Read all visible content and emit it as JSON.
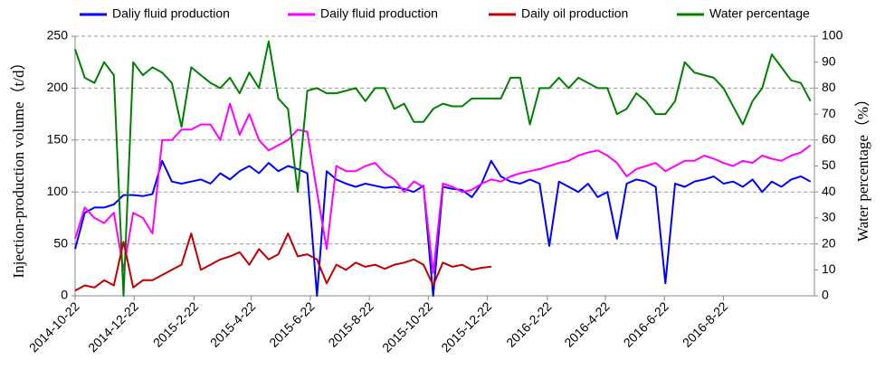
{
  "chart_data": {
    "type": "line",
    "x": [
      "2014-10-22",
      "2014-11-01",
      "2014-11-11",
      "2014-11-21",
      "2014-12-01",
      "2014-12-11",
      "2014-12-21",
      "2014-12-31",
      "2015-01-10",
      "2015-01-20",
      "2015-01-30",
      "2015-02-09",
      "2015-02-19",
      "2015-03-01",
      "2015-03-11",
      "2015-03-21",
      "2015-03-31",
      "2015-04-10",
      "2015-04-20",
      "2015-04-30",
      "2015-05-10",
      "2015-05-20",
      "2015-05-30",
      "2015-06-09",
      "2015-06-19",
      "2015-06-29",
      "2015-07-09",
      "2015-07-19",
      "2015-07-29",
      "2015-08-08",
      "2015-08-18",
      "2015-08-28",
      "2015-09-07",
      "2015-09-17",
      "2015-09-27",
      "2015-10-07",
      "2015-10-17",
      "2015-10-27",
      "2015-11-06",
      "2015-11-16",
      "2015-11-26",
      "2015-12-06",
      "2015-12-16",
      "2015-12-26",
      "2016-01-05",
      "2016-01-15",
      "2016-01-25",
      "2016-02-04",
      "2016-02-14",
      "2016-02-24",
      "2016-03-05",
      "2016-03-15",
      "2016-03-25",
      "2016-04-04",
      "2016-04-14",
      "2016-04-24",
      "2016-05-04",
      "2016-05-14",
      "2016-05-24",
      "2016-06-03",
      "2016-06-13",
      "2016-06-23",
      "2016-07-03",
      "2016-07-13",
      "2016-07-23",
      "2016-08-02",
      "2016-08-12",
      "2016-08-22",
      "2016-09-01",
      "2016-09-11",
      "2016-09-21",
      "2016-10-01",
      "2016-10-11",
      "2016-10-21",
      "2016-10-31",
      "2016-11-10",
      "2016-11-20"
    ],
    "series": [
      {
        "name": "Daliy fluid production",
        "color": "#0000ff",
        "values": [
          45,
          80,
          85,
          85,
          88,
          97,
          97,
          96,
          98,
          130,
          110,
          108,
          110,
          112,
          108,
          118,
          112,
          120,
          125,
          118,
          128,
          120,
          125,
          122,
          118,
          0,
          120,
          112,
          108,
          105,
          108,
          106,
          104,
          105,
          103,
          100,
          106,
          0,
          105,
          103,
          102,
          95,
          108,
          130,
          115,
          110,
          108,
          112,
          108,
          48,
          110,
          105,
          100,
          108,
          95,
          100,
          55,
          108,
          112,
          110,
          105,
          12,
          108,
          105,
          110,
          112,
          115,
          108,
          110,
          105,
          112,
          100,
          110,
          105,
          112,
          115,
          110
        ]
      },
      {
        "name": "Daily fluid production",
        "color": "#ff00ff",
        "values": [
          55,
          85,
          75,
          70,
          80,
          25,
          80,
          75,
          60,
          150,
          150,
          160,
          160,
          165,
          165,
          150,
          185,
          155,
          175,
          150,
          140,
          145,
          150,
          160,
          158,
          100,
          45,
          125,
          120,
          120,
          125,
          128,
          118,
          112,
          100,
          110,
          105,
          22,
          108,
          105,
          100,
          102,
          108,
          112,
          110,
          115,
          118,
          120,
          122,
          125,
          128,
          130,
          135,
          138,
          140,
          135,
          128,
          115,
          122,
          125,
          128,
          120,
          125,
          130,
          130,
          135,
          132,
          128,
          125,
          130,
          128,
          135,
          132,
          130,
          135,
          138,
          145
        ]
      },
      {
        "name": "Daily oil production",
        "color": "#c00000",
        "values": [
          5,
          10,
          8,
          15,
          10,
          52,
          8,
          15,
          15,
          20,
          25,
          30,
          60,
          25,
          30,
          35,
          38,
          42,
          30,
          45,
          35,
          40,
          60,
          38,
          40,
          35,
          12,
          30,
          25,
          32,
          28,
          30,
          26,
          30,
          32,
          35,
          30,
          10,
          32,
          28,
          30,
          25,
          27,
          28,
          null,
          null,
          null,
          null,
          null,
          null,
          null,
          null,
          null,
          null,
          null,
          null,
          null,
          null,
          null,
          null,
          null,
          null,
          null,
          null,
          null,
          null,
          null,
          null,
          null,
          null,
          null,
          null,
          null,
          null,
          null,
          null,
          null
        ]
      },
      {
        "name": "Water percentage",
        "color": "#008000",
        "axis": "y2",
        "values": [
          95,
          84,
          82,
          90,
          85,
          0,
          90,
          85,
          88,
          86,
          82,
          65,
          88,
          85,
          82,
          80,
          84,
          78,
          86,
          80,
          98,
          76,
          72,
          40,
          79,
          80,
          78,
          78,
          79,
          80,
          75,
          80,
          80,
          72,
          74,
          67,
          67,
          72,
          74,
          73,
          73,
          76,
          76,
          76,
          76,
          84,
          84,
          66,
          80,
          80,
          84,
          80,
          84,
          82,
          80,
          80,
          70,
          72,
          78,
          75,
          70,
          70,
          75,
          90,
          86,
          85,
          84,
          80,
          73,
          66,
          75,
          80,
          93,
          88,
          83,
          82,
          75
        ]
      }
    ],
    "xlim": [
      "2014-10-22",
      "2016-11-24"
    ],
    "xticks": [
      {
        "value": "2014-10-22",
        "label": "2014-10-22"
      },
      {
        "value": "2014-12-22",
        "label": "2014-12-22"
      },
      {
        "value": "2015-02-22",
        "label": "2015-2-22"
      },
      {
        "value": "2015-04-22",
        "label": "2015-4-22"
      },
      {
        "value": "2015-06-22",
        "label": "2015-6-22"
      },
      {
        "value": "2015-08-22",
        "label": "2015-8-22"
      },
      {
        "value": "2015-10-22",
        "label": "2015-10-22"
      },
      {
        "value": "2015-12-22",
        "label": "2015-12-22"
      },
      {
        "value": "2016-02-22",
        "label": "2016-2-22"
      },
      {
        "value": "2016-04-22",
        "label": "2016-4-22"
      },
      {
        "value": "2016-06-22",
        "label": "2016-6-22"
      },
      {
        "value": "2016-08-22",
        "label": "2016-8-22"
      }
    ],
    "ylim": [
      0,
      250
    ],
    "yticks": [
      0,
      50,
      100,
      150,
      200,
      250
    ],
    "y2lim": [
      0,
      100
    ],
    "y2ticks": [
      0,
      10,
      20,
      30,
      40,
      50,
      60,
      70,
      80,
      90,
      100
    ],
    "ylabel": "Injection-production volume（t/d）",
    "y2label": "Water percentage（%）",
    "grid": true,
    "legend": "top"
  }
}
